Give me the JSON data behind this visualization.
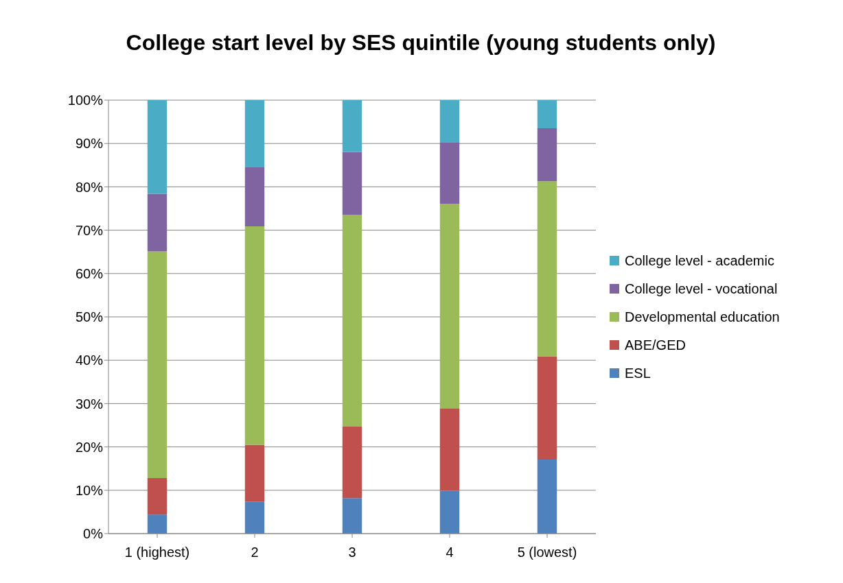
{
  "chart_data": {
    "type": "bar",
    "title": "College start level by SES quintile (young students only)",
    "categories": [
      "1 (highest)",
      "2",
      "3",
      "4",
      "5 (lowest)"
    ],
    "stacked": true,
    "series": [
      {
        "name": "ESL",
        "color": "#4f81bd",
        "values": [
          4.4,
          7.4,
          8.2,
          9.9,
          17.1
        ]
      },
      {
        "name": "ABE/GED",
        "color": "#c0504d",
        "values": [
          8.4,
          13.1,
          16.5,
          19.0,
          23.8
        ]
      },
      {
        "name": "Developmental education",
        "color": "#9bbb59",
        "values": [
          52.3,
          50.4,
          48.8,
          47.2,
          40.4
        ]
      },
      {
        "name": "College level - vocational",
        "color": "#8064a2",
        "values": [
          13.3,
          13.6,
          14.5,
          14.2,
          12.2
        ]
      },
      {
        "name": "College level - academic",
        "color": "#4bacc6",
        "values": [
          21.6,
          15.5,
          12.0,
          9.7,
          6.5
        ]
      }
    ],
    "ylim": [
      0,
      100
    ],
    "yticks": [
      {
        "value": 0,
        "label": "0%"
      },
      {
        "value": 10,
        "label": "10%"
      },
      {
        "value": 20,
        "label": "20%"
      },
      {
        "value": 30,
        "label": "30%"
      },
      {
        "value": 40,
        "label": "40%"
      },
      {
        "value": 50,
        "label": "50%"
      },
      {
        "value": 60,
        "label": "60%"
      },
      {
        "value": 70,
        "label": "70%"
      },
      {
        "value": 80,
        "label": "80%"
      },
      {
        "value": 90,
        "label": "90%"
      },
      {
        "value": 100,
        "label": "100%"
      }
    ],
    "grid": "y",
    "legend": "right"
  }
}
